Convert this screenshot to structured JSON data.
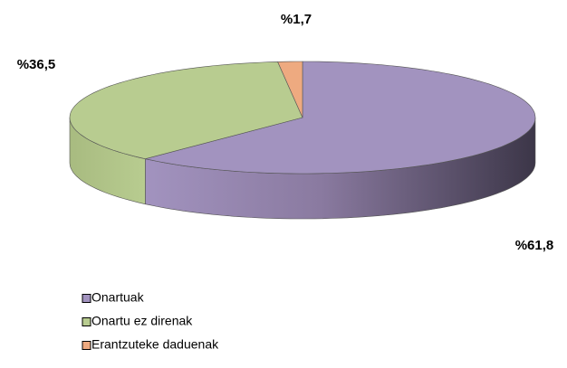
{
  "chart_data": {
    "type": "pie",
    "categories": [
      "Onartuak",
      "Onartu ez direnak",
      "Erantzuteke daduenak"
    ],
    "values": [
      61.8,
      36.5,
      1.7
    ],
    "value_labels": [
      "%61,8",
      "%36,5",
      "%1,7"
    ],
    "colors": [
      "#a293bf",
      "#b8cc90",
      "#eeaa80"
    ],
    "legend": "bottom-left"
  }
}
